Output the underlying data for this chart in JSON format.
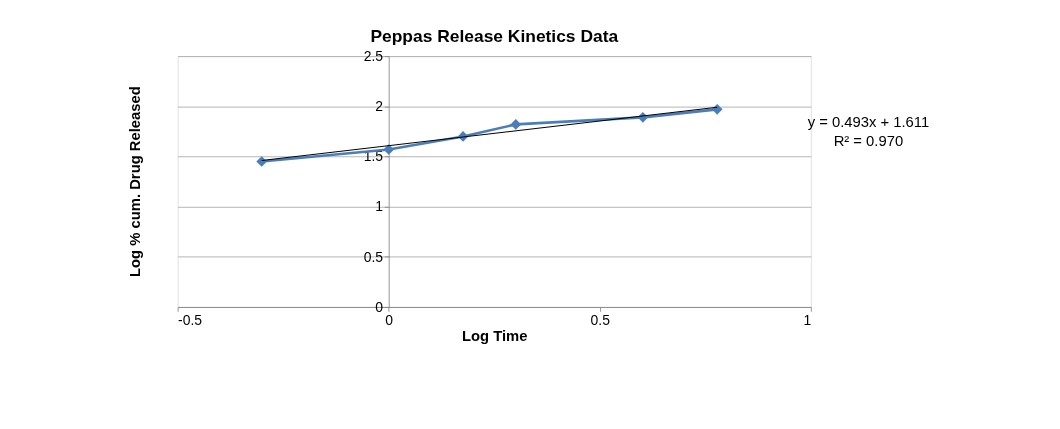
{
  "chart_data": {
    "type": "line",
    "title": "Peppas Release Kinetics Data",
    "xlabel": "Log Time",
    "ylabel": "Log % cum. Drug Released",
    "x": [
      -0.301,
      0,
      0.176,
      0.301,
      0.602,
      0.778
    ],
    "series": [
      {
        "color": "#4a7ebb",
        "values": [
          1.45,
          1.57,
          1.7,
          1.82,
          1.89,
          1.97
        ],
        "marker": "diamond"
      },
      {
        "type": "line",
        "color": "#000000",
        "x": [
          -0.301,
          0.778
        ],
        "values": [
          1.46,
          1.99
        ],
        "marker": "none"
      }
    ],
    "xlim": [
      -0.5,
      1
    ],
    "ylim": [
      0,
      2.5
    ],
    "xticks": [
      -0.5,
      0,
      0.5,
      1
    ],
    "yticks": [
      0,
      0.5,
      1,
      1.5,
      2,
      2.5
    ],
    "grid": "y",
    "line_style": "solid",
    "annotations": [
      "y = 0.493x + 1.611",
      "R² = 0.970"
    ]
  }
}
